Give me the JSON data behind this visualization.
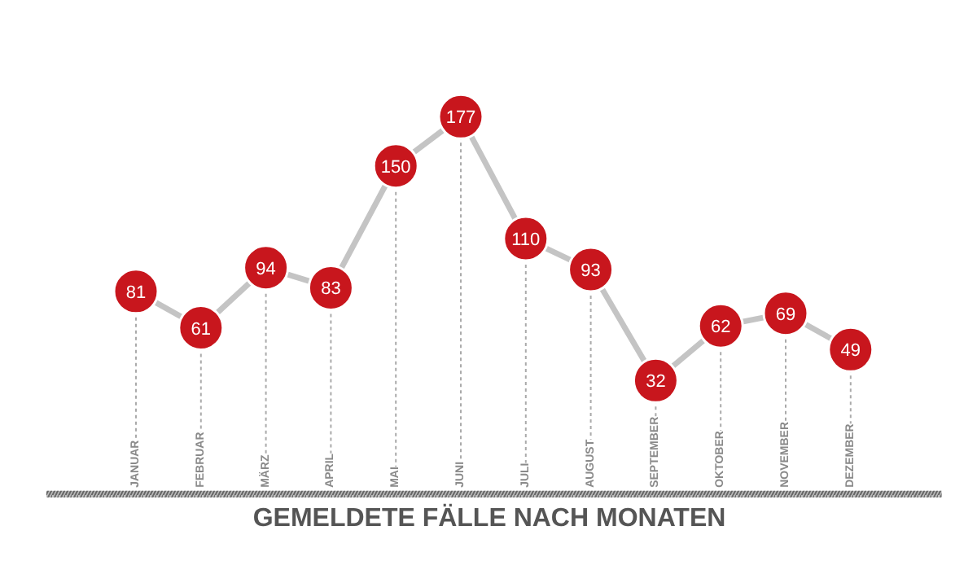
{
  "chart_data": {
    "type": "line",
    "title": "GEMELDETE FÄLLE NACH MONATEN",
    "categories": [
      "JANUAR",
      "FEBRUAR",
      "MÄRZ",
      "APRIL",
      "MAI",
      "JUNI",
      "JULI",
      "AUGUST",
      "SEPTEMBER",
      "OKTOBER",
      "NOVEMBER",
      "DEZEMBER"
    ],
    "series": [
      {
        "color": "#c8161d",
        "values": [
          81,
          61,
          94,
          83,
          150,
          177,
          110,
          93,
          32,
          62,
          69,
          49
        ]
      }
    ],
    "data_labels": true,
    "marker": "circle",
    "line_style": "solid",
    "grid": "x"
  }
}
